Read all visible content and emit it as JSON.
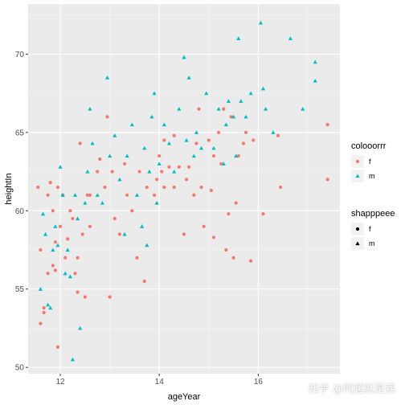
{
  "chart_data": {
    "type": "scatter",
    "xlabel": "ageYear",
    "ylabel": "heightIn",
    "xlim": [
      11.35,
      17.65
    ],
    "ylim": [
      49.6,
      73.2
    ],
    "x_ticks": [
      12,
      14,
      16
    ],
    "y_ticks": [
      50,
      55,
      60,
      65,
      70
    ],
    "grid": true,
    "legend_placement": "right",
    "legends": [
      {
        "title": "colooorrr",
        "entries": [
          {
            "label": "f",
            "color": "#F8766D"
          },
          {
            "label": "m",
            "color": "#00BFC4"
          }
        ]
      },
      {
        "title": "shapppeee",
        "entries": [
          {
            "label": "f",
            "shape": "circle"
          },
          {
            "label": "m",
            "shape": "triangle"
          }
        ]
      }
    ],
    "series": [
      {
        "name": "f",
        "color": "#F8766D",
        "shape": "circle",
        "points": [
          [
            11.55,
            61.5
          ],
          [
            11.6,
            57.5
          ],
          [
            11.6,
            52.8
          ],
          [
            11.67,
            53.8
          ],
          [
            11.67,
            53.5
          ],
          [
            11.75,
            61.0
          ],
          [
            11.75,
            56.0
          ],
          [
            11.8,
            61.8
          ],
          [
            11.85,
            60.0
          ],
          [
            11.85,
            56.5
          ],
          [
            11.9,
            58.0
          ],
          [
            11.9,
            56.2
          ],
          [
            11.95,
            61.5
          ],
          [
            11.95,
            51.3
          ],
          [
            12.0,
            59.0
          ],
          [
            12.05,
            61.0
          ],
          [
            12.1,
            57.0
          ],
          [
            12.15,
            58.2
          ],
          [
            12.2,
            60.0
          ],
          [
            12.25,
            59.5
          ],
          [
            12.3,
            56.0
          ],
          [
            12.35,
            57.0
          ],
          [
            12.35,
            54.8
          ],
          [
            12.4,
            64.3
          ],
          [
            12.45,
            58.5
          ],
          [
            12.5,
            54.5
          ],
          [
            12.55,
            61.0
          ],
          [
            12.6,
            61.0
          ],
          [
            12.6,
            59.0
          ],
          [
            12.75,
            62.5
          ],
          [
            12.8,
            63.3
          ],
          [
            12.9,
            61.5
          ],
          [
            12.95,
            66.0
          ],
          [
            13.0,
            54.5
          ],
          [
            13.05,
            62.5
          ],
          [
            13.1,
            59.5
          ],
          [
            13.2,
            58.5
          ],
          [
            13.3,
            63.0
          ],
          [
            13.35,
            61.0
          ],
          [
            13.45,
            60.0
          ],
          [
            13.55,
            57.0
          ],
          [
            13.6,
            62.5
          ],
          [
            13.7,
            55.5
          ],
          [
            13.75,
            61.5
          ],
          [
            13.9,
            61.0
          ],
          [
            13.95,
            62.0
          ],
          [
            14.0,
            63.5
          ],
          [
            14.05,
            62.5
          ],
          [
            14.1,
            64.5
          ],
          [
            14.1,
            61.5
          ],
          [
            14.2,
            62.8
          ],
          [
            14.3,
            64.8
          ],
          [
            14.3,
            61.5
          ],
          [
            14.4,
            62.8
          ],
          [
            14.5,
            58.5
          ],
          [
            14.55,
            62.0
          ],
          [
            14.6,
            62.8
          ],
          [
            14.7,
            61.0
          ],
          [
            14.75,
            64.3
          ],
          [
            14.8,
            66.5
          ],
          [
            14.85,
            61.5
          ],
          [
            14.9,
            59.0
          ],
          [
            15.0,
            64.5
          ],
          [
            15.05,
            61.3
          ],
          [
            15.1,
            63.5
          ],
          [
            15.1,
            58.3
          ],
          [
            15.2,
            65.0
          ],
          [
            15.25,
            63.0
          ],
          [
            15.3,
            66.5
          ],
          [
            15.35,
            57.5
          ],
          [
            15.4,
            59.8
          ],
          [
            15.45,
            66.0
          ],
          [
            15.5,
            57.0
          ],
          [
            15.55,
            60.5
          ],
          [
            15.6,
            63.5
          ],
          [
            15.7,
            64.3
          ],
          [
            15.75,
            65.0
          ],
          [
            15.85,
            56.8
          ],
          [
            15.9,
            64.5
          ],
          [
            16.1,
            59.8
          ],
          [
            16.4,
            64.8
          ],
          [
            16.45,
            61.5
          ],
          [
            17.4,
            65.5
          ],
          [
            17.4,
            62.0
          ]
        ]
      },
      {
        "name": "m",
        "color": "#00BFC4",
        "shape": "triangle",
        "points": [
          [
            11.6,
            55.0
          ],
          [
            11.65,
            59.8
          ],
          [
            11.7,
            58.5
          ],
          [
            11.75,
            54.0
          ],
          [
            11.8,
            53.8
          ],
          [
            11.85,
            57.5
          ],
          [
            11.9,
            59.0
          ],
          [
            11.95,
            57.8
          ],
          [
            12.0,
            62.8
          ],
          [
            12.05,
            61.0
          ],
          [
            12.1,
            56.0
          ],
          [
            12.15,
            57.5
          ],
          [
            12.2,
            55.8
          ],
          [
            12.25,
            50.5
          ],
          [
            12.3,
            61.0
          ],
          [
            12.35,
            59.5
          ],
          [
            12.4,
            52.5
          ],
          [
            12.5,
            60.5
          ],
          [
            12.55,
            62.5
          ],
          [
            12.6,
            66.5
          ],
          [
            12.65,
            64.3
          ],
          [
            12.75,
            61.0
          ],
          [
            12.85,
            60.5
          ],
          [
            12.95,
            68.5
          ],
          [
            13.0,
            63.5
          ],
          [
            13.1,
            64.8
          ],
          [
            13.2,
            62.0
          ],
          [
            13.3,
            58.5
          ],
          [
            13.35,
            63.5
          ],
          [
            13.45,
            65.5
          ],
          [
            13.55,
            61.0
          ],
          [
            13.65,
            59.0
          ],
          [
            13.7,
            64.0
          ],
          [
            13.75,
            57.8
          ],
          [
            13.8,
            62.5
          ],
          [
            13.85,
            66.0
          ],
          [
            13.9,
            67.5
          ],
          [
            13.95,
            60.5
          ],
          [
            14.0,
            63.0
          ],
          [
            14.1,
            65.5
          ],
          [
            14.2,
            64.3
          ],
          [
            14.3,
            62.5
          ],
          [
            14.4,
            66.5
          ],
          [
            14.5,
            69.8
          ],
          [
            14.55,
            64.5
          ],
          [
            14.6,
            68.5
          ],
          [
            14.7,
            63.5
          ],
          [
            14.75,
            65.0
          ],
          [
            14.85,
            64.0
          ],
          [
            14.95,
            67.5
          ],
          [
            15.1,
            64.0
          ],
          [
            15.2,
            66.5
          ],
          [
            15.3,
            63.0
          ],
          [
            15.35,
            65.5
          ],
          [
            15.4,
            67.0
          ],
          [
            15.5,
            66.0
          ],
          [
            15.55,
            63.5
          ],
          [
            15.6,
            71.0
          ],
          [
            15.65,
            67.0
          ],
          [
            15.75,
            66.0
          ],
          [
            15.85,
            67.5
          ],
          [
            16.05,
            72.0
          ],
          [
            16.1,
            67.8
          ],
          [
            16.15,
            66.5
          ],
          [
            16.3,
            65.0
          ],
          [
            16.65,
            71.0
          ],
          [
            16.9,
            66.5
          ],
          [
            17.15,
            69.5
          ],
          [
            17.15,
            68.3
          ]
        ]
      }
    ]
  },
  "watermark": "知乎 @阿超就是我"
}
